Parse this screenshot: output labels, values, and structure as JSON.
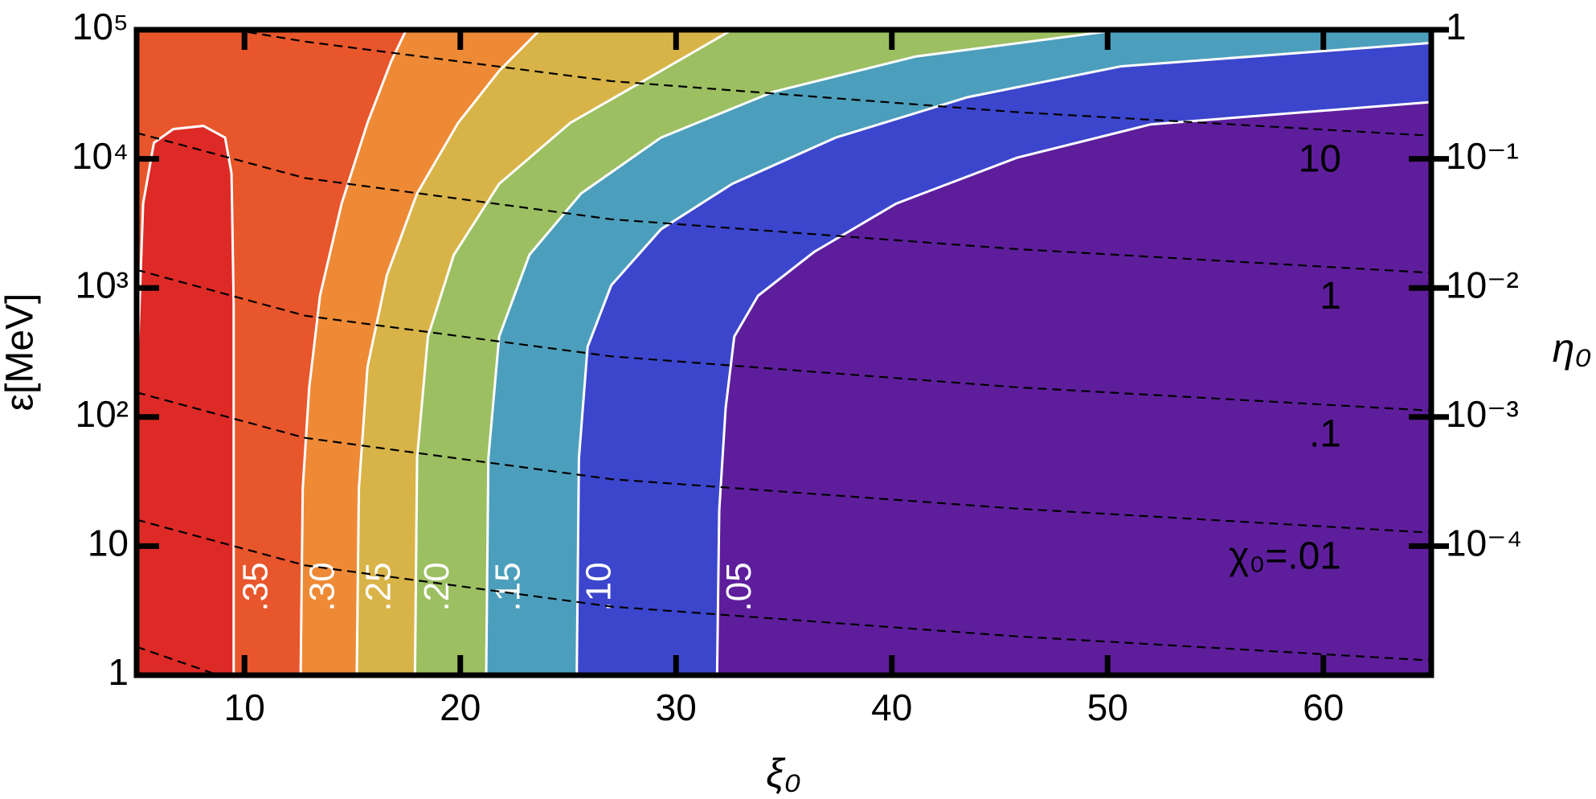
{
  "chart_data": {
    "type": "contour",
    "x_label": "ξ₀",
    "y_label": "ε[MeV]",
    "y2_label": "η₀",
    "xlim": [
      5,
      65
    ],
    "xticks": [
      10,
      20,
      30,
      40,
      50,
      60
    ],
    "ylim": [
      1,
      100000
    ],
    "yscale": "log",
    "yticks": [
      1,
      10,
      {
        "value": 100,
        "label": "10²"
      },
      {
        "value": 1000,
        "label": "10³"
      },
      {
        "value": 10000,
        "label": "10⁴"
      },
      {
        "value": 100000,
        "label": "10⁵"
      }
    ],
    "y2lim": [
      1e-05,
      1
    ],
    "y2scale": "log",
    "y2ticks": [
      1,
      {
        "value": 0.1,
        "label": "10⁻¹"
      },
      {
        "value": 0.01,
        "label": "10⁻²"
      },
      {
        "value": 0.001,
        "label": "10⁻³"
      },
      {
        "value": 0.0001,
        "label": "10⁻⁴"
      }
    ],
    "background_color": "#5e1e9c",
    "contours": {
      "color": "#ffffff",
      "levels": [
        0.35,
        0.3,
        0.25,
        0.2,
        0.15,
        0.1,
        0.05
      ],
      "level_labels": [
        ".35",
        ".30",
        ".25",
        ".20",
        ".15",
        ".10",
        ".05"
      ],
      "region_colors": [
        "#dd2a26",
        "#e8562c",
        "#ee8a36",
        "#d8b448",
        "#9cbf62",
        "#4c9fbc",
        "#3c46cc"
      ],
      "lines": [
        {
          "x": [
            9.5,
            9.5,
            9.4,
            9.1,
            8.1,
            6.7,
            5.8,
            5.3,
            5
          ],
          "y": [
            1,
            730,
            7700,
            14600,
            18000,
            17000,
            13300,
            4500,
            170
          ]
        },
        {
          "x": [
            12.6,
            12.7,
            13.0,
            13.5,
            14.5,
            15.7,
            16.8,
            17.5
          ],
          "y": [
            1,
            28,
            170,
            870,
            4500,
            19000,
            57000,
            100000
          ]
        },
        {
          "x": [
            15.2,
            15.3,
            15.7,
            16.6,
            18.0,
            19.9,
            21.8,
            23.7
          ],
          "y": [
            1,
            28,
            245,
            1260,
            5400,
            19000,
            48000,
            100000
          ]
        },
        {
          "x": [
            17.9,
            18.0,
            18.5,
            19.7,
            21.8,
            25.1,
            29.3,
            32.6
          ],
          "y": [
            1,
            48,
            420,
            1800,
            6400,
            19000,
            48000,
            100000
          ]
        },
        {
          "x": [
            21.2,
            21.3,
            21.8,
            23.2,
            25.6,
            29.3,
            34.5,
            41.1,
            50.6
          ],
          "y": [
            1,
            48,
            420,
            1800,
            5400,
            14600,
            33000,
            62000,
            100000
          ]
        },
        {
          "x": [
            25.4,
            25.5,
            25.9,
            27.0,
            29.3,
            32.6,
            37.4,
            43.5,
            50.6,
            65
          ],
          "y": [
            1,
            48,
            350,
            1050,
            2850,
            6400,
            14600,
            30000,
            52000,
            79000
          ]
        },
        {
          "x": [
            31.9,
            32.0,
            32.3,
            32.7,
            33.8,
            36.4,
            40.2,
            45.8,
            52.0,
            65
          ],
          "y": [
            1,
            19,
            118,
            420,
            870,
            1900,
            4500,
            10200,
            18500,
            27500
          ]
        }
      ]
    },
    "chi_lines": {
      "color": "#000000",
      "dashed": true,
      "levels": [
        10,
        1,
        0.1,
        0.01,
        0.001,
        0.0001
      ],
      "level_labels": [
        "10",
        "1",
        ".1",
        "χ₀=.01",
        null,
        null
      ],
      "lines": [
        {
          "x": [
            9.5,
            12.8,
            27.0,
            45.8,
            65
          ],
          "y": [
            100000,
            81000,
            40000,
            23000,
            15100
          ]
        },
        {
          "x": [
            5,
            12.8,
            27.0,
            45.8,
            65
          ],
          "y": [
            15900,
            7100,
            3400,
            2000,
            1310
          ]
        },
        {
          "x": [
            5,
            12.8,
            27.0,
            45.8,
            65
          ],
          "y": [
            1380,
            610,
            295,
            170,
            112
          ]
        },
        {
          "x": [
            5,
            12.8,
            27.0,
            45.8,
            65
          ],
          "y": [
            155,
            69,
            33,
            19.5,
            12.7
          ]
        },
        {
          "x": [
            5,
            12.8,
            27.0,
            45.8,
            65
          ],
          "y": [
            16,
            7.1,
            3.4,
            2.0,
            1.3
          ]
        },
        {
          "x": [
            5,
            8.8
          ],
          "y": [
            1.66,
            1
          ]
        }
      ]
    }
  }
}
